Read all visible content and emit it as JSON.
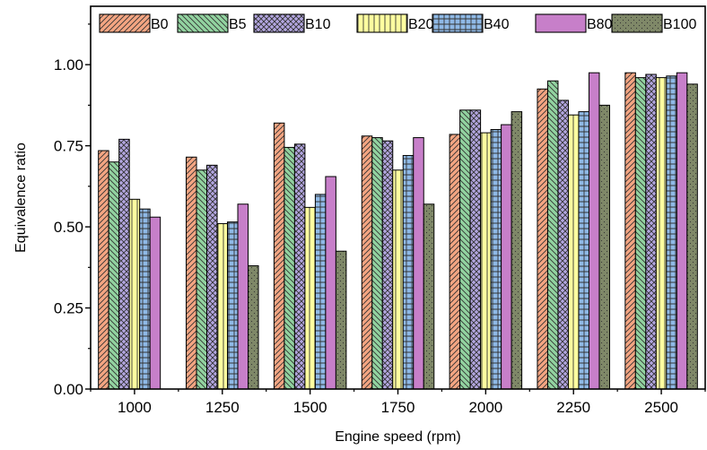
{
  "chart_data": {
    "type": "bar",
    "title": "",
    "xlabel": "Engine speed (rpm)",
    "ylabel": "Equivalence ratio",
    "categories": [
      "1000",
      "1250",
      "1500",
      "1750",
      "2000",
      "2250",
      "2500"
    ],
    "ylim": [
      0,
      1.18
    ],
    "yticks": [
      "0.00",
      "0.25",
      "0.50",
      "0.75",
      "1.00"
    ],
    "legend_position": "top",
    "grid": false,
    "series": [
      {
        "name": "B0",
        "color": "#f4a582",
        "pattern": "diag-right",
        "values": [
          0.735,
          0.715,
          0.82,
          0.78,
          0.785,
          0.925,
          0.975
        ]
      },
      {
        "name": "B5",
        "color": "#92d3a0",
        "pattern": "diag-left",
        "values": [
          0.7,
          0.675,
          0.745,
          0.775,
          0.86,
          0.95,
          0.96
        ]
      },
      {
        "name": "B10",
        "color": "#b3a6e0",
        "pattern": "cross",
        "values": [
          0.77,
          0.69,
          0.755,
          0.765,
          0.86,
          0.89,
          0.97
        ]
      },
      {
        "name": "B20",
        "color": "#ffffa0",
        "pattern": "vertical",
        "values": [
          0.585,
          0.51,
          0.56,
          0.675,
          0.79,
          0.845,
          0.96
        ]
      },
      {
        "name": "B40",
        "color": "#8fb9e6",
        "pattern": "grid",
        "values": [
          0.555,
          0.515,
          0.6,
          0.72,
          0.8,
          0.855,
          0.965
        ]
      },
      {
        "name": "B80",
        "color": "#c77fc9",
        "pattern": "none",
        "values": [
          0.53,
          0.57,
          0.655,
          0.775,
          0.815,
          0.975,
          0.975
        ]
      },
      {
        "name": "B100",
        "color": "#7f8868",
        "pattern": "dots",
        "values": [
          null,
          0.38,
          0.425,
          0.57,
          0.855,
          0.875,
          0.94
        ]
      }
    ]
  }
}
